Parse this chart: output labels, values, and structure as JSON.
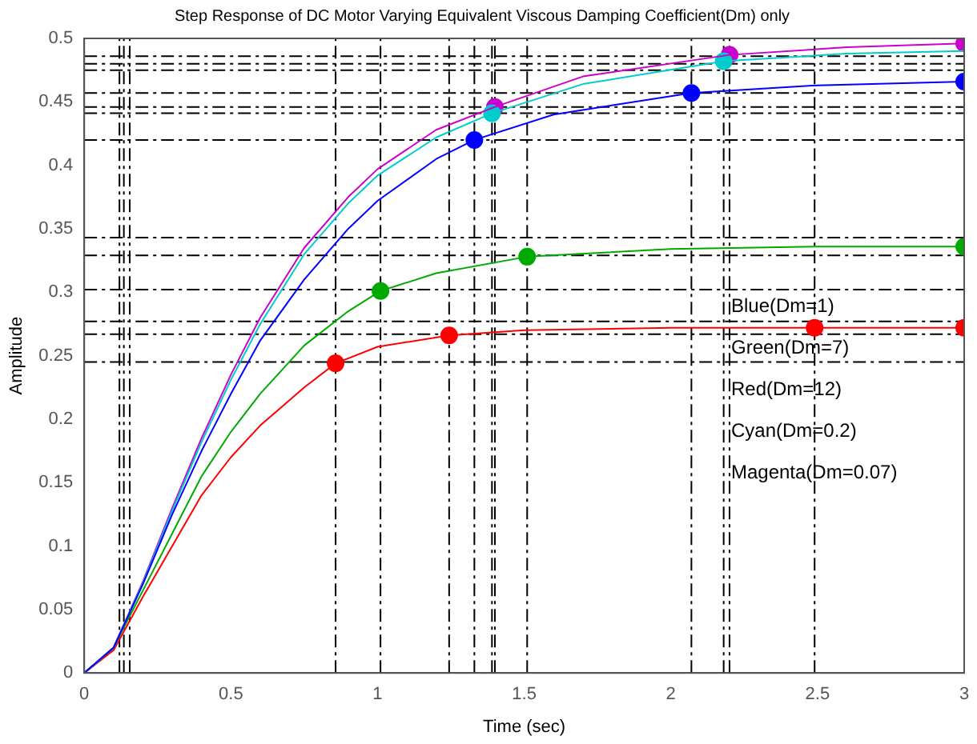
{
  "chart_data": {
    "type": "line",
    "title": "Step Response of DC Motor Varying Equivalent Viscous Damping Coefficient(Dm) only",
    "xlabel": "Time (sec)",
    "ylabel": "Amplitude",
    "xlim": [
      0,
      3
    ],
    "xticks": [
      0,
      0.5,
      1,
      1.5,
      2,
      2.5,
      3
    ],
    "ylim": [
      0,
      0.5
    ],
    "yticks": [
      0,
      0.05,
      0.1,
      0.15,
      0.2,
      0.25,
      0.3,
      0.35,
      0.4,
      0.45,
      0.5
    ],
    "grid": false,
    "legend": false,
    "line_style": "solid",
    "series": [
      {
        "color": "#0000ff",
        "marker": "none",
        "x": [
          0,
          0.1,
          0.2,
          0.3,
          0.4,
          0.5,
          0.6,
          0.75,
          0.9,
          1.0,
          1.2,
          1.33,
          1.6,
          2.07,
          2.5,
          3
        ],
        "values": [
          0,
          0.02,
          0.07,
          0.125,
          0.175,
          0.22,
          0.262,
          0.31,
          0.35,
          0.372,
          0.405,
          0.42,
          0.44,
          0.457,
          0.463,
          0.466
        ]
      },
      {
        "color": "#00cccc",
        "marker": "none",
        "x": [
          0,
          0.1,
          0.2,
          0.3,
          0.4,
          0.5,
          0.6,
          0.75,
          0.9,
          1.0,
          1.2,
          1.39,
          1.7,
          2.18,
          2.6,
          3
        ],
        "values": [
          0,
          0.02,
          0.071,
          0.128,
          0.182,
          0.231,
          0.275,
          0.33,
          0.37,
          0.392,
          0.422,
          0.441,
          0.464,
          0.482,
          0.488,
          0.49
        ]
      },
      {
        "color": "#cc00cc",
        "marker": "none",
        "x": [
          0,
          0.1,
          0.2,
          0.3,
          0.4,
          0.5,
          0.6,
          0.75,
          0.9,
          1.0,
          1.2,
          1.4,
          1.7,
          2.2,
          2.6,
          3
        ],
        "values": [
          0,
          0.02,
          0.072,
          0.13,
          0.185,
          0.235,
          0.28,
          0.335,
          0.375,
          0.397,
          0.428,
          0.446,
          0.47,
          0.487,
          0.493,
          0.496
        ]
      },
      {
        "color": "#00aa00",
        "marker": "none",
        "x": [
          0,
          0.1,
          0.2,
          0.3,
          0.4,
          0.5,
          0.6,
          0.75,
          0.9,
          1.01,
          1.2,
          1.51,
          2,
          2.5,
          3
        ],
        "values": [
          0,
          0.02,
          0.065,
          0.11,
          0.155,
          0.19,
          0.22,
          0.258,
          0.285,
          0.301,
          0.315,
          0.328,
          0.334,
          0.336,
          0.336
        ]
      },
      {
        "color": "#ff0000",
        "marker": "none",
        "x": [
          0,
          0.1,
          0.2,
          0.3,
          0.4,
          0.5,
          0.6,
          0.75,
          0.857,
          1.0,
          1.244,
          1.5,
          2,
          2.49,
          3
        ],
        "values": [
          0,
          0.018,
          0.06,
          0.1,
          0.14,
          0.17,
          0.195,
          0.225,
          0.244,
          0.257,
          0.266,
          0.27,
          0.272,
          0.272,
          0.272
        ]
      },
      {
        "type": "scatter",
        "color": "#0000ff",
        "marker": "circle",
        "x": [
          1.33,
          2.07,
          3
        ],
        "values": [
          0.42,
          0.457,
          0.466
        ]
      },
      {
        "type": "scatter",
        "color": "#00cccc",
        "marker": "circle",
        "x": [
          1.39,
          2.18
        ],
        "values": [
          0.441,
          0.482
        ]
      },
      {
        "type": "scatter",
        "color": "#cc00cc",
        "marker": "circle",
        "x": [
          1.4,
          2.2,
          3
        ],
        "values": [
          0.446,
          0.487,
          0.496
        ]
      },
      {
        "type": "scatter",
        "color": "#00aa00",
        "marker": "circle",
        "x": [
          1.01,
          1.51,
          3
        ],
        "values": [
          0.301,
          0.328,
          0.336
        ]
      },
      {
        "type": "scatter",
        "color": "#ff0000",
        "marker": "circle",
        "x": [
          0.857,
          1.244,
          2.49,
          3
        ],
        "values": [
          0.244,
          0.266,
          0.272,
          0.272
        ]
      }
    ],
    "ref_lines": [
      {
        "axis": "y",
        "value": 0.486,
        "line_style": "dashed"
      },
      {
        "axis": "y",
        "value": 0.48,
        "line_style": "dashed"
      },
      {
        "axis": "y",
        "value": 0.475,
        "line_style": "dashed"
      },
      {
        "axis": "y",
        "value": 0.457,
        "line_style": "dashed"
      },
      {
        "axis": "y",
        "value": 0.446,
        "line_style": "dashed"
      },
      {
        "axis": "y",
        "value": 0.441,
        "line_style": "dashed"
      },
      {
        "axis": "y",
        "value": 0.42,
        "line_style": "dashed"
      },
      {
        "axis": "y",
        "value": 0.343,
        "line_style": "dashed"
      },
      {
        "axis": "y",
        "value": 0.329,
        "line_style": "dashed"
      },
      {
        "axis": "y",
        "value": 0.302,
        "line_style": "dashed"
      },
      {
        "axis": "y",
        "value": 0.277,
        "line_style": "dashed"
      },
      {
        "axis": "y",
        "value": 0.267,
        "line_style": "dashed"
      },
      {
        "axis": "y",
        "value": 0.245,
        "line_style": "dashed"
      },
      {
        "axis": "x",
        "value": 0.12,
        "line_style": "dashed"
      },
      {
        "axis": "x",
        "value": 0.135,
        "line_style": "dashed"
      },
      {
        "axis": "x",
        "value": 0.155,
        "line_style": "dashed"
      },
      {
        "axis": "x",
        "value": 0.857,
        "line_style": "dashed"
      },
      {
        "axis": "x",
        "value": 1.01,
        "line_style": "dashed"
      },
      {
        "axis": "x",
        "value": 1.244,
        "line_style": "dashed"
      },
      {
        "axis": "x",
        "value": 1.33,
        "line_style": "dashed"
      },
      {
        "axis": "x",
        "value": 1.39,
        "line_style": "dashed"
      },
      {
        "axis": "x",
        "value": 1.4,
        "line_style": "dashed"
      },
      {
        "axis": "x",
        "value": 1.51,
        "line_style": "dashed"
      },
      {
        "axis": "x",
        "value": 2.07,
        "line_style": "dashed"
      },
      {
        "axis": "x",
        "value": 2.18,
        "line_style": "dashed"
      },
      {
        "axis": "x",
        "value": 2.2,
        "line_style": "dashed"
      },
      {
        "axis": "x",
        "value": 2.49,
        "line_style": "dashed"
      }
    ],
    "annotations": [
      "Blue(Dm=1)",
      "Green(Dm=7)",
      "Red(Dm=12)",
      "Cyan(Dm=0.2)",
      "Magenta(Dm=0.07)"
    ]
  }
}
